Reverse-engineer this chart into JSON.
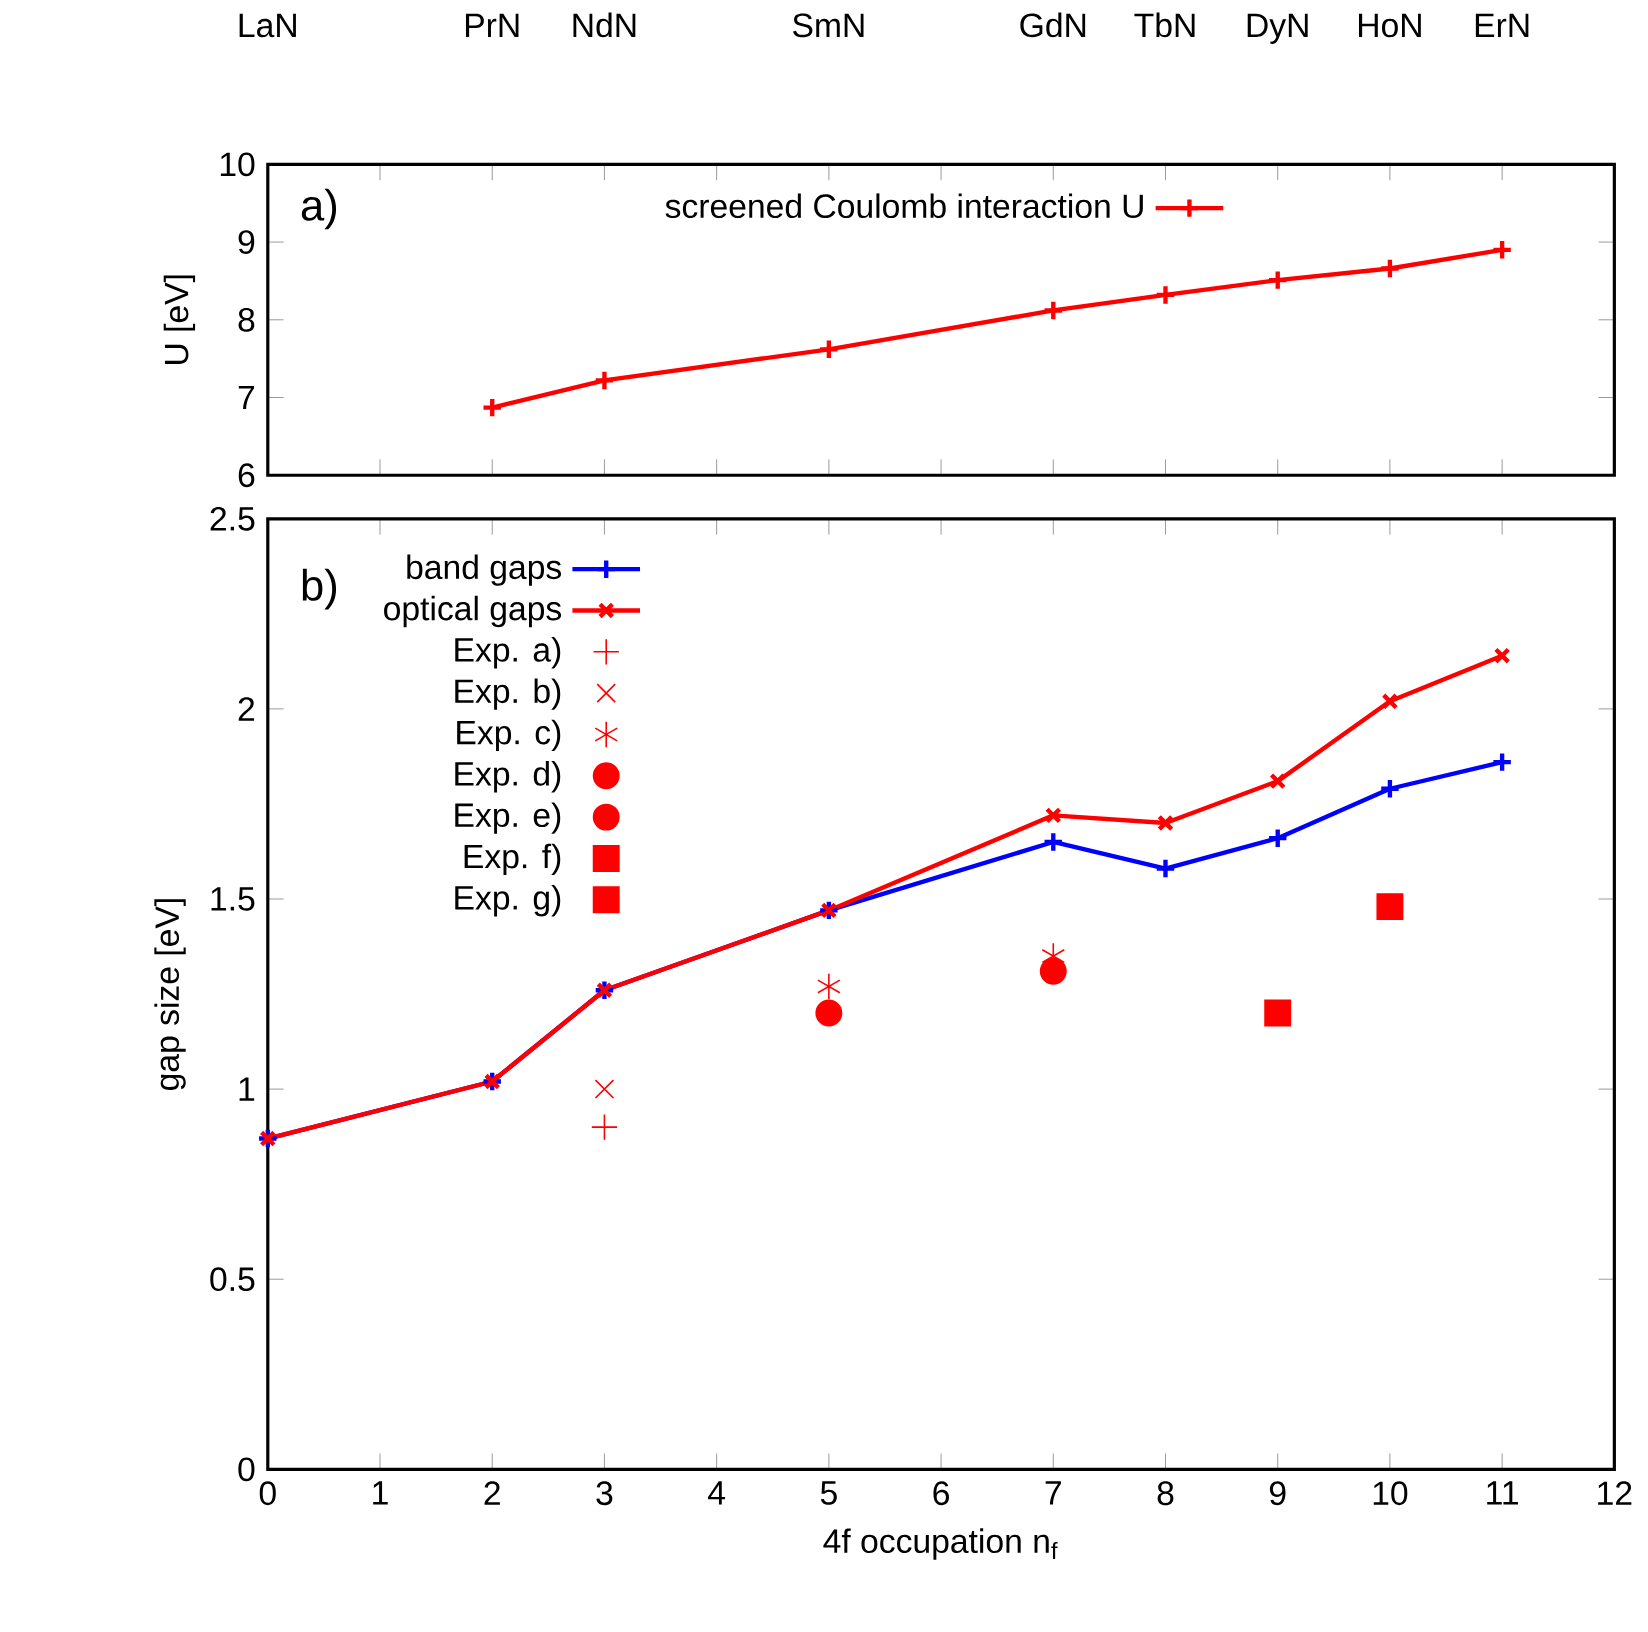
{
  "chart_data": [
    {
      "type": "line",
      "ylabel": "U [eV]",
      "annotations": [
        "a)"
      ],
      "legend": "top",
      "categories": [
        "LaN",
        null,
        "PrN",
        "NdN",
        null,
        "SmN",
        null,
        "GdN",
        "TbN",
        "DyN",
        "HoN",
        "ErN",
        null
      ],
      "ylim": [
        6,
        10
      ],
      "yticks": [
        6,
        7,
        8,
        9,
        10
      ],
      "series": [
        {
          "name": "screened Coulomb interaction U",
          "color": "#ff0000",
          "marker": "cross",
          "values": [
            null,
            null,
            6.87,
            7.22,
            null,
            7.62,
            null,
            8.12,
            8.32,
            8.51,
            8.66,
            8.9,
            null
          ]
        }
      ]
    },
    {
      "type": "line",
      "xlabel": "4f occupation n$_{f}$",
      "ylabel": "gap size [eV]",
      "annotations": [
        "b)"
      ],
      "legend": "top left",
      "xlim": [
        0,
        12
      ],
      "xticks": [
        0,
        1,
        2,
        3,
        4,
        5,
        6,
        7,
        8,
        9,
        10,
        11,
        12
      ],
      "ylim": [
        0,
        2.5
      ],
      "yticks": [
        0,
        0.5,
        1,
        1.5,
        2,
        2.5
      ],
      "series": [
        {
          "name": "band gaps",
          "color": "#0000ff",
          "marker": "cross",
          "x": [
            0,
            2,
            3,
            5,
            7,
            8,
            9,
            10,
            11
          ],
          "values": [
            0.87,
            1.02,
            1.26,
            1.47,
            1.65,
            1.58,
            1.66,
            1.79,
            1.86
          ]
        },
        {
          "name": "optical gaps",
          "color": "#ff0000",
          "marker": "cross",
          "x": [
            0,
            2,
            3,
            5,
            7,
            8,
            9,
            10,
            11
          ],
          "values": [
            0.87,
            1.02,
            1.26,
            1.47,
            1.72,
            1.7,
            1.81,
            2.02,
            2.14
          ]
        },
        {
          "name": "Exp. a)",
          "type": "scatter",
          "color": "#ff0000",
          "marker": "cross",
          "x": [
            3
          ],
          "values": [
            0.9
          ]
        },
        {
          "name": "Exp. b)",
          "type": "scatter",
          "color": "#ff0000",
          "marker": "cross",
          "x": [
            3
          ],
          "values": [
            1.0
          ]
        },
        {
          "name": "Exp. c)",
          "type": "scatter",
          "color": "#ff0000",
          "marker": "cross",
          "x": [
            5,
            7
          ],
          "values": [
            1.27,
            1.35
          ]
        },
        {
          "name": "Exp. d)",
          "type": "scatter",
          "color": "#ff0000",
          "marker": "circle",
          "x": [
            5
          ],
          "values": [
            1.2
          ]
        },
        {
          "name": "Exp. e)",
          "type": "scatter",
          "color": "#ff0000",
          "marker": "circle",
          "x": [
            7
          ],
          "values": [
            1.31
          ]
        },
        {
          "name": "Exp. f)",
          "type": "scatter",
          "color": "#ff0000",
          "marker": "square",
          "x": [
            9
          ],
          "values": [
            1.2
          ]
        },
        {
          "name": "Exp. g)",
          "type": "scatter",
          "color": "#ff0000",
          "marker": "square",
          "x": [
            10
          ],
          "values": [
            1.48
          ]
        }
      ]
    }
  ]
}
